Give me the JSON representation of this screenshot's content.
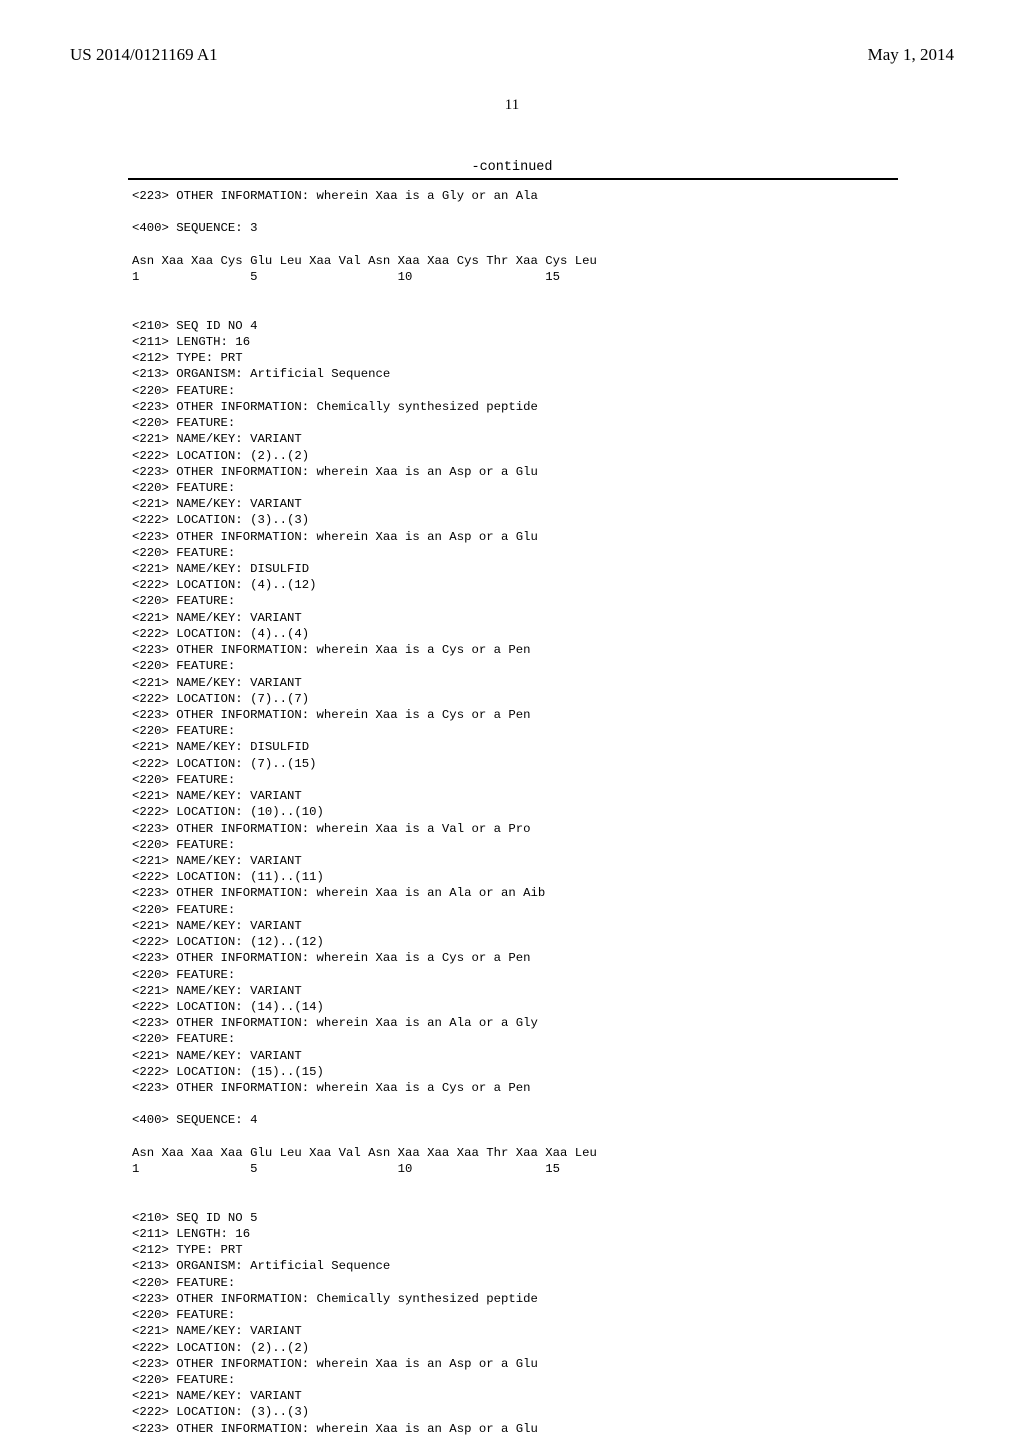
{
  "header": {
    "pub_number": "US 2014/0121169 A1",
    "pub_date": "May 1, 2014"
  },
  "page_number": "11",
  "continued_label": "-continued",
  "seq3": {
    "tail_223": "<223> OTHER INFORMATION: wherein Xaa is a Gly or an Ala",
    "seq_label": "<400> SEQUENCE: 3",
    "aa_line": "Asn Xaa Xaa Cys Glu Leu Xaa Val Asn Xaa Xaa Cys Thr Xaa Cys Leu",
    "num_line": "1               5                   10                  15"
  },
  "seq4": {
    "lines": [
      "<210> SEQ ID NO 4",
      "<211> LENGTH: 16",
      "<212> TYPE: PRT",
      "<213> ORGANISM: Artificial Sequence",
      "<220> FEATURE:",
      "<223> OTHER INFORMATION: Chemically synthesized peptide",
      "<220> FEATURE:",
      "<221> NAME/KEY: VARIANT",
      "<222> LOCATION: (2)..(2)",
      "<223> OTHER INFORMATION: wherein Xaa is an Asp or a Glu",
      "<220> FEATURE:",
      "<221> NAME/KEY: VARIANT",
      "<222> LOCATION: (3)..(3)",
      "<223> OTHER INFORMATION: wherein Xaa is an Asp or a Glu",
      "<220> FEATURE:",
      "<221> NAME/KEY: DISULFID",
      "<222> LOCATION: (4)..(12)",
      "<220> FEATURE:",
      "<221> NAME/KEY: VARIANT",
      "<222> LOCATION: (4)..(4)",
      "<223> OTHER INFORMATION: wherein Xaa is a Cys or a Pen",
      "<220> FEATURE:",
      "<221> NAME/KEY: VARIANT",
      "<222> LOCATION: (7)..(7)",
      "<223> OTHER INFORMATION: wherein Xaa is a Cys or a Pen",
      "<220> FEATURE:",
      "<221> NAME/KEY: DISULFID",
      "<222> LOCATION: (7)..(15)",
      "<220> FEATURE:",
      "<221> NAME/KEY: VARIANT",
      "<222> LOCATION: (10)..(10)",
      "<223> OTHER INFORMATION: wherein Xaa is a Val or a Pro",
      "<220> FEATURE:",
      "<221> NAME/KEY: VARIANT",
      "<222> LOCATION: (11)..(11)",
      "<223> OTHER INFORMATION: wherein Xaa is an Ala or an Aib",
      "<220> FEATURE:",
      "<221> NAME/KEY: VARIANT",
      "<222> LOCATION: (12)..(12)",
      "<223> OTHER INFORMATION: wherein Xaa is a Cys or a Pen",
      "<220> FEATURE:",
      "<221> NAME/KEY: VARIANT",
      "<222> LOCATION: (14)..(14)",
      "<223> OTHER INFORMATION: wherein Xaa is an Ala or a Gly",
      "<220> FEATURE:",
      "<221> NAME/KEY: VARIANT",
      "<222> LOCATION: (15)..(15)",
      "<223> OTHER INFORMATION: wherein Xaa is a Cys or a Pen"
    ],
    "seq_label": "<400> SEQUENCE: 4",
    "aa_line": "Asn Xaa Xaa Xaa Glu Leu Xaa Val Asn Xaa Xaa Xaa Thr Xaa Xaa Leu",
    "num_line": "1               5                   10                  15"
  },
  "seq5": {
    "lines": [
      "<210> SEQ ID NO 5",
      "<211> LENGTH: 16",
      "<212> TYPE: PRT",
      "<213> ORGANISM: Artificial Sequence",
      "<220> FEATURE:",
      "<223> OTHER INFORMATION: Chemically synthesized peptide",
      "<220> FEATURE:",
      "<221> NAME/KEY: VARIANT",
      "<222> LOCATION: (2)..(2)",
      "<223> OTHER INFORMATION: wherein Xaa is an Asp or a Glu",
      "<220> FEATURE:",
      "<221> NAME/KEY: VARIANT",
      "<222> LOCATION: (3)..(3)",
      "<223> OTHER INFORMATION: wherein Xaa is an Asp or a Glu"
    ]
  }
}
